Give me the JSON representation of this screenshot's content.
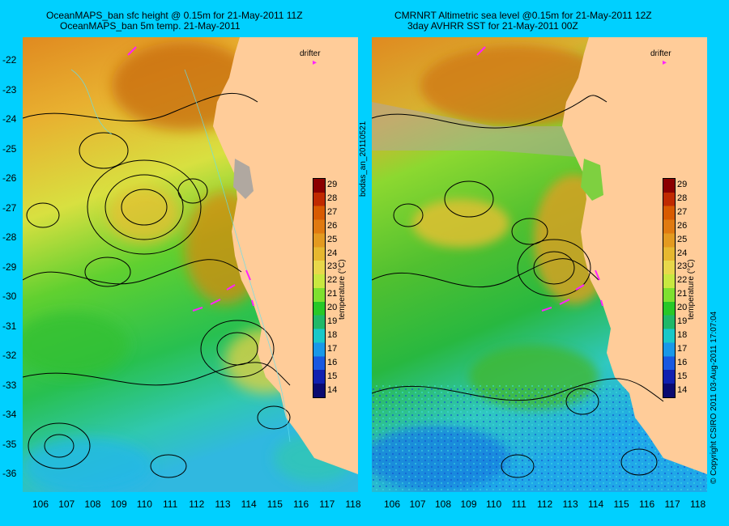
{
  "titles": {
    "left_line1": "OceanMAPS_ban sfc height @ 0.15m for 21-May-2011 11Z",
    "left_line2": "OceanMAPS_ban 5m temp. 21-May-2011",
    "right_line1": "CMRNRT Altimetric sea level  @0.15m  for 21-May-2011 12Z",
    "right_line2": "3day AVHRR SST for 21-May-2011 00Z"
  },
  "lat_labels": [
    "-22",
    "-23",
    "-24",
    "-25",
    "-26",
    "-27",
    "-28",
    "-29",
    "-30",
    "-31",
    "-32",
    "-33",
    "-34",
    "-35",
    "-36"
  ],
  "lon_labels": [
    "106",
    "107",
    "108",
    "109",
    "110",
    "111",
    "112",
    "113",
    "114",
    "115",
    "116",
    "117",
    "118"
  ],
  "drifter_label": "drifter",
  "drifter_marker": "▸",
  "colorbar": {
    "ticks": [
      "29",
      "28",
      "27",
      "26",
      "25",
      "24",
      "23",
      "22",
      "21",
      "20",
      "19",
      "18",
      "17",
      "16",
      "15",
      "14"
    ],
    "label": "temperature (°C)",
    "colors": [
      "#8b0000",
      "#c02a00",
      "#d85a00",
      "#e07a10",
      "#e39a20",
      "#e6b830",
      "#e8d84a",
      "#c8e840",
      "#7ee030",
      "#28c828",
      "#20b868",
      "#18c8c8",
      "#1898e8",
      "#1858e0",
      "#1020b0",
      "#0a0a70"
    ]
  },
  "side_left_text": "bodas_an_20110521",
  "side_right_text": "© Copyright CSIRO 2011    03-Aug-2011 17:07:04",
  "colors": {
    "background": "#00d0ff",
    "land": "#ffcc99",
    "drifter": "#ff22ff",
    "cloud": "#b0a8a0"
  }
}
